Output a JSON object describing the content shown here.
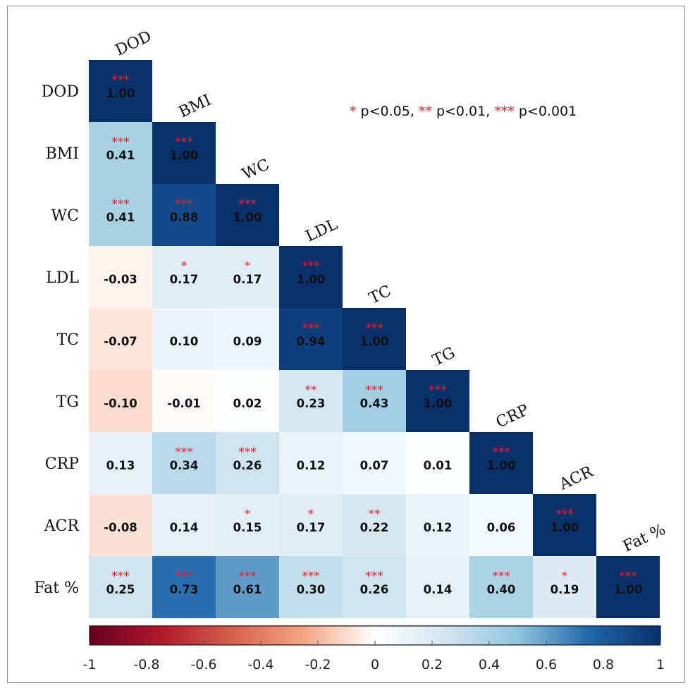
{
  "chart_data": {
    "type": "heatmap",
    "variables": [
      "DOD",
      "BMI",
      "WC",
      "LDL",
      "TC",
      "TG",
      "CRP",
      "ACR",
      "Fat %"
    ],
    "lower_triangle": true,
    "values": [
      [
        1.0
      ],
      [
        0.41,
        1.0
      ],
      [
        0.41,
        0.88,
        1.0
      ],
      [
        -0.03,
        0.17,
        0.17,
        1.0
      ],
      [
        -0.07,
        0.1,
        0.09,
        0.94,
        1.0
      ],
      [
        -0.1,
        -0.01,
        0.02,
        0.23,
        0.43,
        1.0
      ],
      [
        0.13,
        0.34,
        0.26,
        0.12,
        0.07,
        0.01,
        1.0
      ],
      [
        -0.08,
        0.14,
        0.15,
        0.17,
        0.22,
        0.12,
        0.06,
        1.0
      ],
      [
        0.25,
        0.73,
        0.61,
        0.3,
        0.26,
        0.14,
        0.4,
        0.19,
        1.0
      ]
    ],
    "labels": [
      [
        "1.00"
      ],
      [
        "0.41",
        "1.00"
      ],
      [
        "0.41",
        "0.88",
        "1.00"
      ],
      [
        "-0.03",
        "0.17",
        "0.17",
        "1.00"
      ],
      [
        "-0.07",
        "0.10",
        "0.09",
        "0.94",
        "1.00"
      ],
      [
        "-0.10",
        "-0.01",
        "0.02",
        "0.23",
        "0.43",
        "1.00"
      ],
      [
        "0.13",
        "0.34",
        "0.26",
        "0.12",
        "0.07",
        "0.01",
        "1.00"
      ],
      [
        "-0.08",
        "0.14",
        "0.15",
        "0.17",
        "0.22",
        "0.12",
        "0.06",
        "1.00"
      ],
      [
        "0.25",
        "0.73",
        "0.61",
        "0.30",
        "0.26",
        "0.14",
        "0.40",
        "0.19",
        "1.00"
      ]
    ],
    "significance": [
      [
        "***"
      ],
      [
        "***",
        "***"
      ],
      [
        "***",
        "***",
        "***"
      ],
      [
        "",
        "*",
        "*",
        "***"
      ],
      [
        "",
        "",
        "",
        "***",
        "***"
      ],
      [
        "",
        "",
        "",
        "**",
        "***",
        "***"
      ],
      [
        "",
        "***",
        "***",
        "",
        "",
        "",
        "***"
      ],
      [
        "",
        "",
        "*",
        "*",
        "**",
        "",
        "",
        "***"
      ],
      [
        "***",
        "***",
        "***",
        "***",
        "***",
        "",
        "***",
        "*",
        "***"
      ]
    ],
    "legend": [
      {
        "stars": "*",
        "text": " p<0.05, "
      },
      {
        "stars": "**",
        "text": " p<0.01, "
      },
      {
        "stars": "***",
        "text": " p<0.001"
      }
    ],
    "colorbar": {
      "range": [
        -1,
        1
      ],
      "ticks": [
        "-1",
        "-0.8",
        "-0.6",
        "-0.4",
        "-0.2",
        "0",
        "0.2",
        "0.4",
        "0.6",
        "0.8",
        "1"
      ],
      "colors": {
        "negative_end": "#67001f",
        "mid": "#ffffff",
        "positive_end": "#08306b"
      }
    },
    "star_color": "#e8202a"
  }
}
